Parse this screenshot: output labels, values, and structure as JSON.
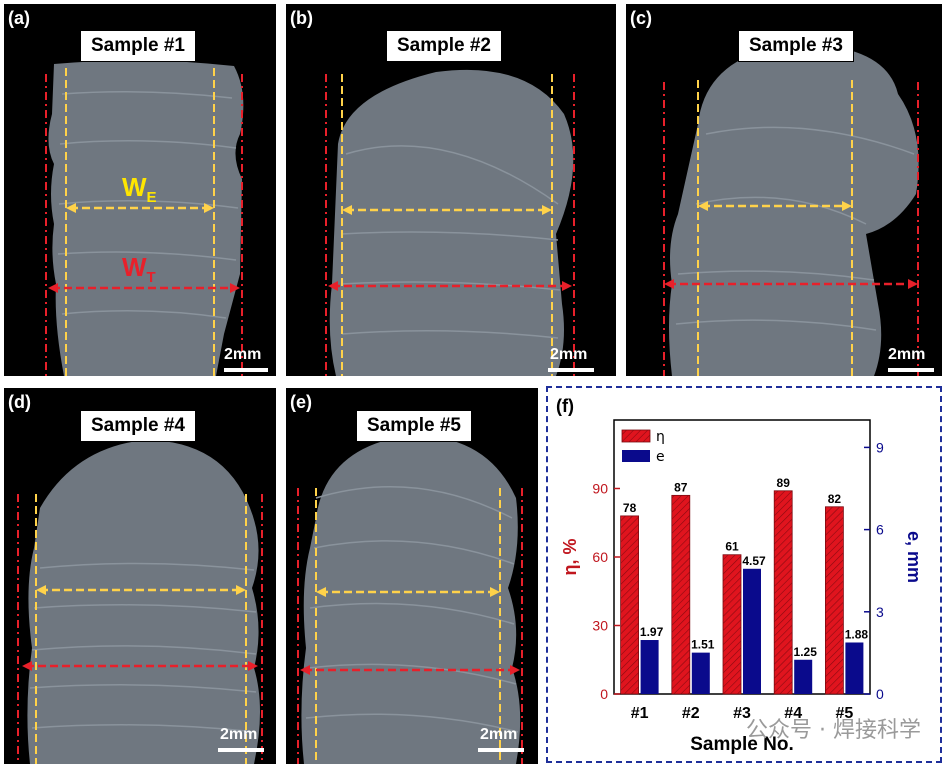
{
  "panels": [
    {
      "tag": "(a)",
      "title": "Sample #1",
      "scale": "2mm",
      "we": "W",
      "we_sub": "E",
      "wt": "W",
      "wt_sub": "T"
    },
    {
      "tag": "(b)",
      "title": "Sample #2",
      "scale": "2mm"
    },
    {
      "tag": "(c)",
      "title": "Sample #3",
      "scale": "2mm"
    },
    {
      "tag": "(d)",
      "title": "Sample #4",
      "scale": "2mm"
    },
    {
      "tag": "(e)",
      "title": "Sample #5",
      "scale": "2mm"
    }
  ],
  "chart_data": {
    "panel_tag": "(f)",
    "type": "bar",
    "categories": [
      "#1",
      "#2",
      "#3",
      "#4",
      "#5"
    ],
    "series": [
      {
        "name": "η",
        "axis": "left",
        "color": "#e0141e",
        "values": [
          78,
          87,
          61,
          89,
          82
        ],
        "labels": [
          "78",
          "87",
          "61",
          "89",
          "82"
        ]
      },
      {
        "name": "e",
        "axis": "right",
        "color": "#0a0a8c",
        "values": [
          1.97,
          1.51,
          4.57,
          1.25,
          1.88
        ],
        "labels": [
          "1.97",
          "1.51",
          "4.57",
          "1.25",
          "1.88"
        ]
      }
    ],
    "xlabel": "Sample No.",
    "ylabel_left": "η, %",
    "ylabel_right": "e, mm",
    "ylim_left": [
      0,
      120
    ],
    "ylim_right": [
      0,
      10
    ],
    "yticks_left": [
      0,
      30,
      60,
      90
    ],
    "yticks_right": [
      0,
      3,
      6,
      9
    ],
    "legend_position": "top-left",
    "grid": false
  },
  "colors": {
    "left_axis": "#c0161e",
    "right_axis": "#0a0a8c",
    "border": "#1f2f9a"
  },
  "watermark": "公众号 · 焊接科学"
}
